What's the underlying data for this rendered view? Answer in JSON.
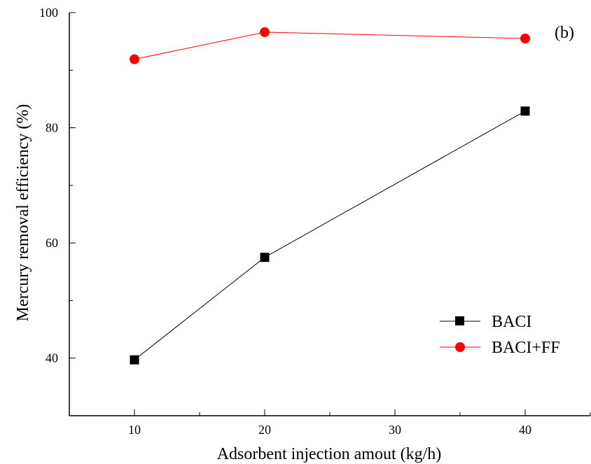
{
  "chart_data": {
    "type": "line",
    "panel_label": "(b)",
    "title": "",
    "xlabel": "Adsorbent injection amout (kg/h)",
    "ylabel": "Mercury removal efficiency (%)",
    "xlim": [
      5,
      45
    ],
    "ylim": [
      30,
      100
    ],
    "xticks": [
      10,
      20,
      30,
      40
    ],
    "yticks": [
      40,
      60,
      80,
      100
    ],
    "grid": false,
    "legend_position": "bottom-right",
    "series": [
      {
        "name": "BACI",
        "marker": "square",
        "color": "#000000",
        "x": [
          10,
          20,
          40
        ],
        "y": [
          39.7,
          57.5,
          82.9
        ]
      },
      {
        "name": "BACI+FF",
        "marker": "circle",
        "color": "#ff0000",
        "x": [
          10,
          20,
          40
        ],
        "y": [
          91.9,
          96.6,
          95.5
        ]
      }
    ]
  }
}
